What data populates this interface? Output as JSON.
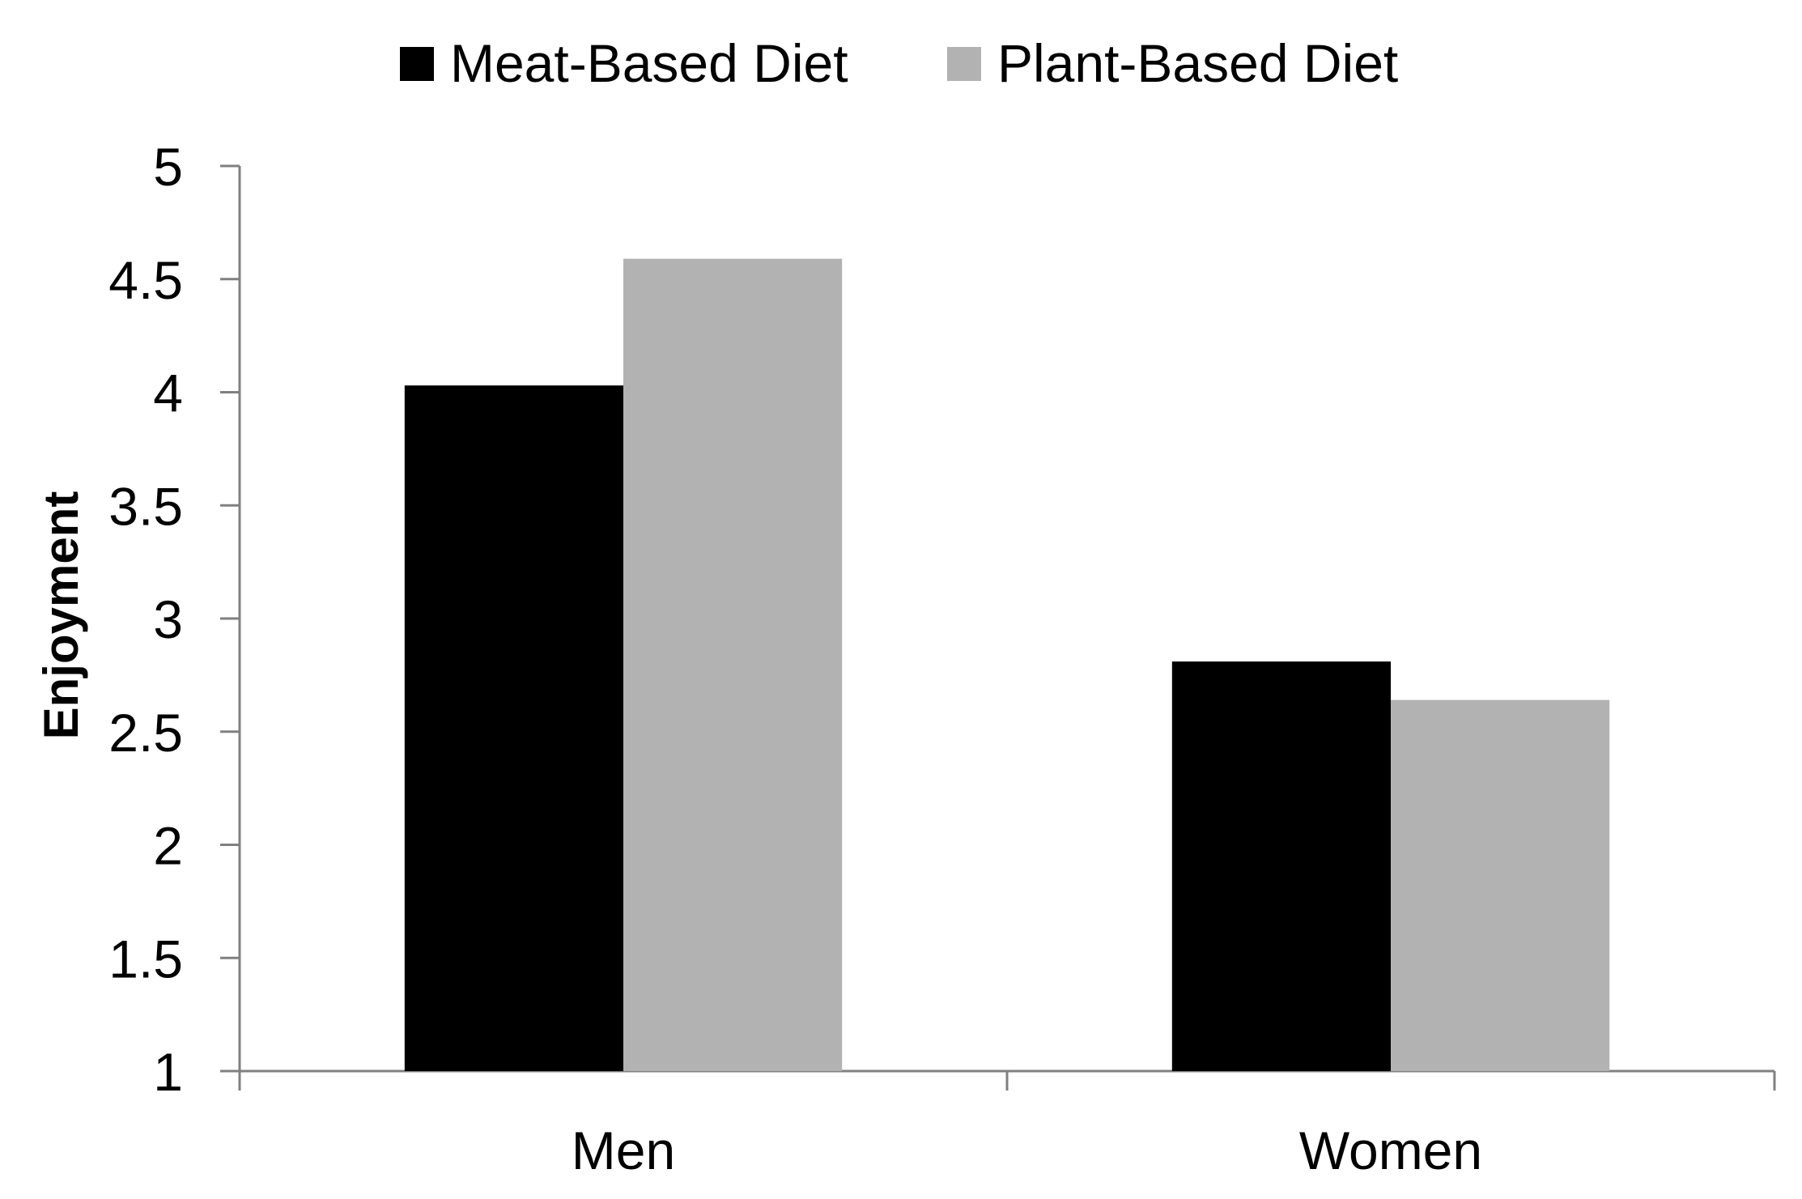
{
  "chart_data": {
    "type": "bar",
    "title": "",
    "xlabel": "",
    "ylabel": "Enjoyment",
    "categories": [
      "Men",
      "Women"
    ],
    "series": [
      {
        "name": "Meat-Based Diet",
        "values": [
          4.03,
          2.81
        ],
        "color": "#000000"
      },
      {
        "name": "Plant-Based Diet",
        "values": [
          4.59,
          2.64
        ],
        "color": "#b2b2b2"
      }
    ],
    "ylim": [
      1,
      5
    ],
    "yticks": [
      "1",
      "1.5",
      "2",
      "2.5",
      "3",
      "3.5",
      "4",
      "4.5",
      "5"
    ],
    "grid": false,
    "legend_position": "top-center"
  }
}
